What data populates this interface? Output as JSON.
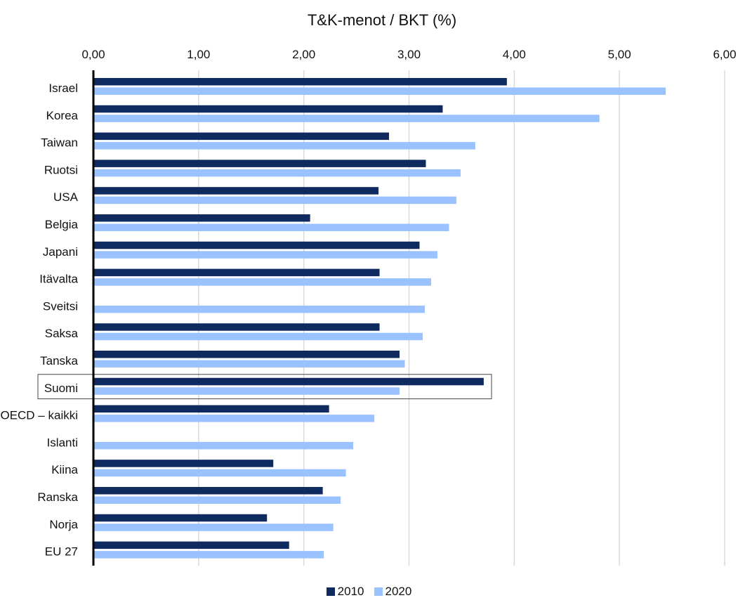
{
  "chart_data": {
    "type": "bar",
    "orientation": "horizontal",
    "title": "T&K-menot / BKT (%)",
    "xlim": [
      0,
      6
    ],
    "tick_values": [
      0,
      1,
      2,
      3,
      4,
      5,
      6
    ],
    "tick_labels": [
      "0,00",
      "1,00",
      "2,00",
      "3,00",
      "4,00",
      "5,00",
      "6,00"
    ],
    "grid": true,
    "legend_position": "bottom",
    "highlighted_category": "Suomi",
    "categories": [
      "Israel",
      "Korea",
      "Taiwan",
      "Ruotsi",
      "USA",
      "Belgia",
      "Japani",
      "Itävalta",
      "Sveitsi",
      "Saksa",
      "Tanska",
      "Suomi",
      "OECD – kaikki",
      "Islanti",
      "Kiina",
      "Ranska",
      "Norja",
      "EU 27"
    ],
    "series": [
      {
        "name": "2010",
        "color": "#0e2a5e",
        "values": [
          3.93,
          3.32,
          2.81,
          3.16,
          2.71,
          2.06,
          3.1,
          2.72,
          null,
          2.72,
          2.91,
          3.71,
          2.24,
          null,
          1.71,
          2.18,
          1.65,
          1.86
        ]
      },
      {
        "name": "2020",
        "color": "#99c2ff",
        "values": [
          5.44,
          4.81,
          3.63,
          3.49,
          3.45,
          3.38,
          3.27,
          3.21,
          3.15,
          3.13,
          2.96,
          2.91,
          2.67,
          2.47,
          2.4,
          2.35,
          2.28,
          2.19
        ]
      }
    ]
  }
}
